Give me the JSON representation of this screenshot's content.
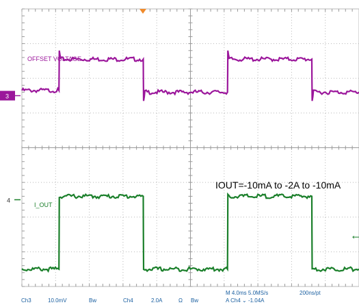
{
  "chart_data": {
    "type": "line",
    "title": "",
    "annotation": "IOUT=-10mA to -2A to -10mA",
    "grid": true,
    "x_divisions": 10,
    "y_divisions": 8,
    "series": [
      {
        "name": "OFFSET VOLTAGE",
        "channel": "Ch3",
        "color": "#9b169b",
        "marker_label": "3",
        "points": [
          [
            0,
            0.15
          ],
          [
            2.2,
            0.15
          ],
          [
            2.22,
            1.3
          ],
          [
            2.3,
            1.05
          ],
          [
            7.2,
            1.05
          ],
          [
            7.22,
            -0.15
          ],
          [
            7.3,
            0.1
          ],
          [
            12.2,
            0.1
          ],
          [
            12.22,
            1.3
          ],
          [
            12.3,
            1.05
          ],
          [
            17.2,
            1.05
          ],
          [
            17.22,
            -0.15
          ],
          [
            17.3,
            0.1
          ],
          [
            20,
            0.1
          ]
        ]
      },
      {
        "name": "I_OUT",
        "channel": "Ch4",
        "color": "#1a7f2a",
        "marker_label": "4",
        "points": [
          [
            0,
            -2.0
          ],
          [
            2.2,
            -2.0
          ],
          [
            2.22,
            0.1
          ],
          [
            7.2,
            0.1
          ],
          [
            7.22,
            -2.0
          ],
          [
            12.2,
            -2.0
          ],
          [
            12.22,
            0.1
          ],
          [
            17.2,
            0.1
          ],
          [
            17.22,
            -2.0
          ],
          [
            20,
            -2.0
          ]
        ]
      }
    ],
    "status": {
      "ch3": "Ch3",
      "ch3_scale": "10.0mV",
      "ch3_bw": "Bw",
      "ch4": "Ch4",
      "ch4_scale": "2.0A",
      "ch4_ohm": "Ω",
      "ch4_bw": "Bw",
      "timebase": "M 4.0ms 5.0MS/s",
      "resolution": "200ns/pt",
      "trigger": "A  Ch4  ⌄  -1.04A"
    }
  }
}
